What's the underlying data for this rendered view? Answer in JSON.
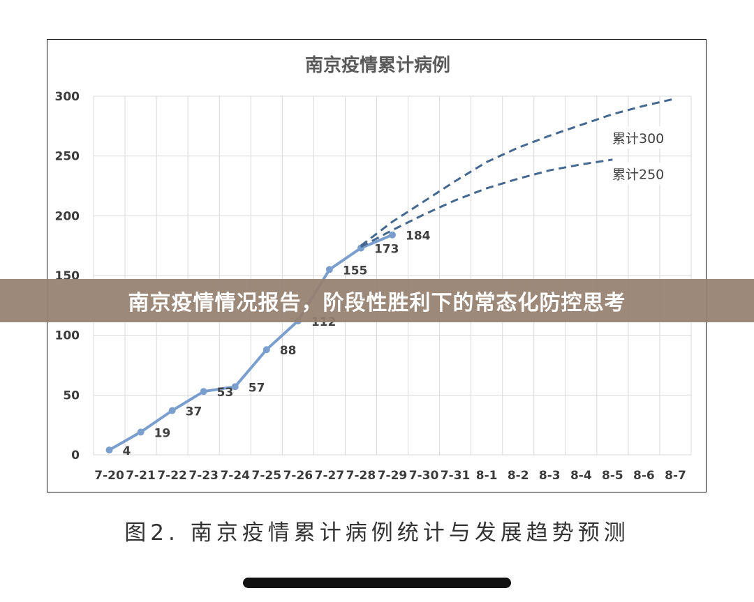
{
  "chart_data": {
    "type": "line",
    "title": "南京疫情累计病例",
    "categories": [
      "7-20",
      "7-21",
      "7-22",
      "7-23",
      "7-24",
      "7-25",
      "7-26",
      "7-27",
      "7-28",
      "7-29",
      "7-30",
      "7-31",
      "8-1",
      "8-2",
      "8-3",
      "8-4",
      "8-5",
      "8-6",
      "8-7"
    ],
    "ylim": [
      0,
      300
    ],
    "yticks": [
      0,
      50,
      100,
      150,
      200,
      250,
      300
    ],
    "grid": true,
    "series": [
      {
        "name": "",
        "style": "solid",
        "color": "#7a9fce",
        "x": [
          "7-20",
          "7-21",
          "7-22",
          "7-23",
          "7-24",
          "7-25",
          "7-26",
          "7-27",
          "7-28",
          "7-29"
        ],
        "values": [
          4,
          19,
          37,
          53,
          57,
          88,
          112,
          155,
          173,
          184
        ],
        "labels": [
          "4",
          "19",
          "37",
          "53",
          "57",
          "88",
          "112",
          "155",
          "173",
          "184"
        ]
      },
      {
        "name": "累计300",
        "style": "dashed",
        "color": "#44688f",
        "x": [
          "7-28",
          "7-29",
          "7-30",
          "7-31",
          "8-1",
          "8-2",
          "8-3",
          "8-4",
          "8-5",
          "8-6",
          "8-7"
        ],
        "values": [
          175,
          195,
          212,
          229,
          245,
          257,
          267,
          276,
          285,
          292,
          298
        ]
      },
      {
        "name": "累计250",
        "style": "dashed",
        "color": "#44688f",
        "x": [
          "7-28",
          "7-29",
          "7-30",
          "7-31",
          "8-1",
          "8-2",
          "8-3",
          "8-4",
          "8-5"
        ],
        "values": [
          174,
          188,
          201,
          213,
          223,
          231,
          238,
          243,
          247
        ]
      }
    ]
  },
  "banner": {
    "text": "南京疫情情况报告，阶段性胜利下的常态化防控思考"
  },
  "caption": {
    "text": "图2. 南京疫情累计病例统计与发展趋势预测"
  }
}
